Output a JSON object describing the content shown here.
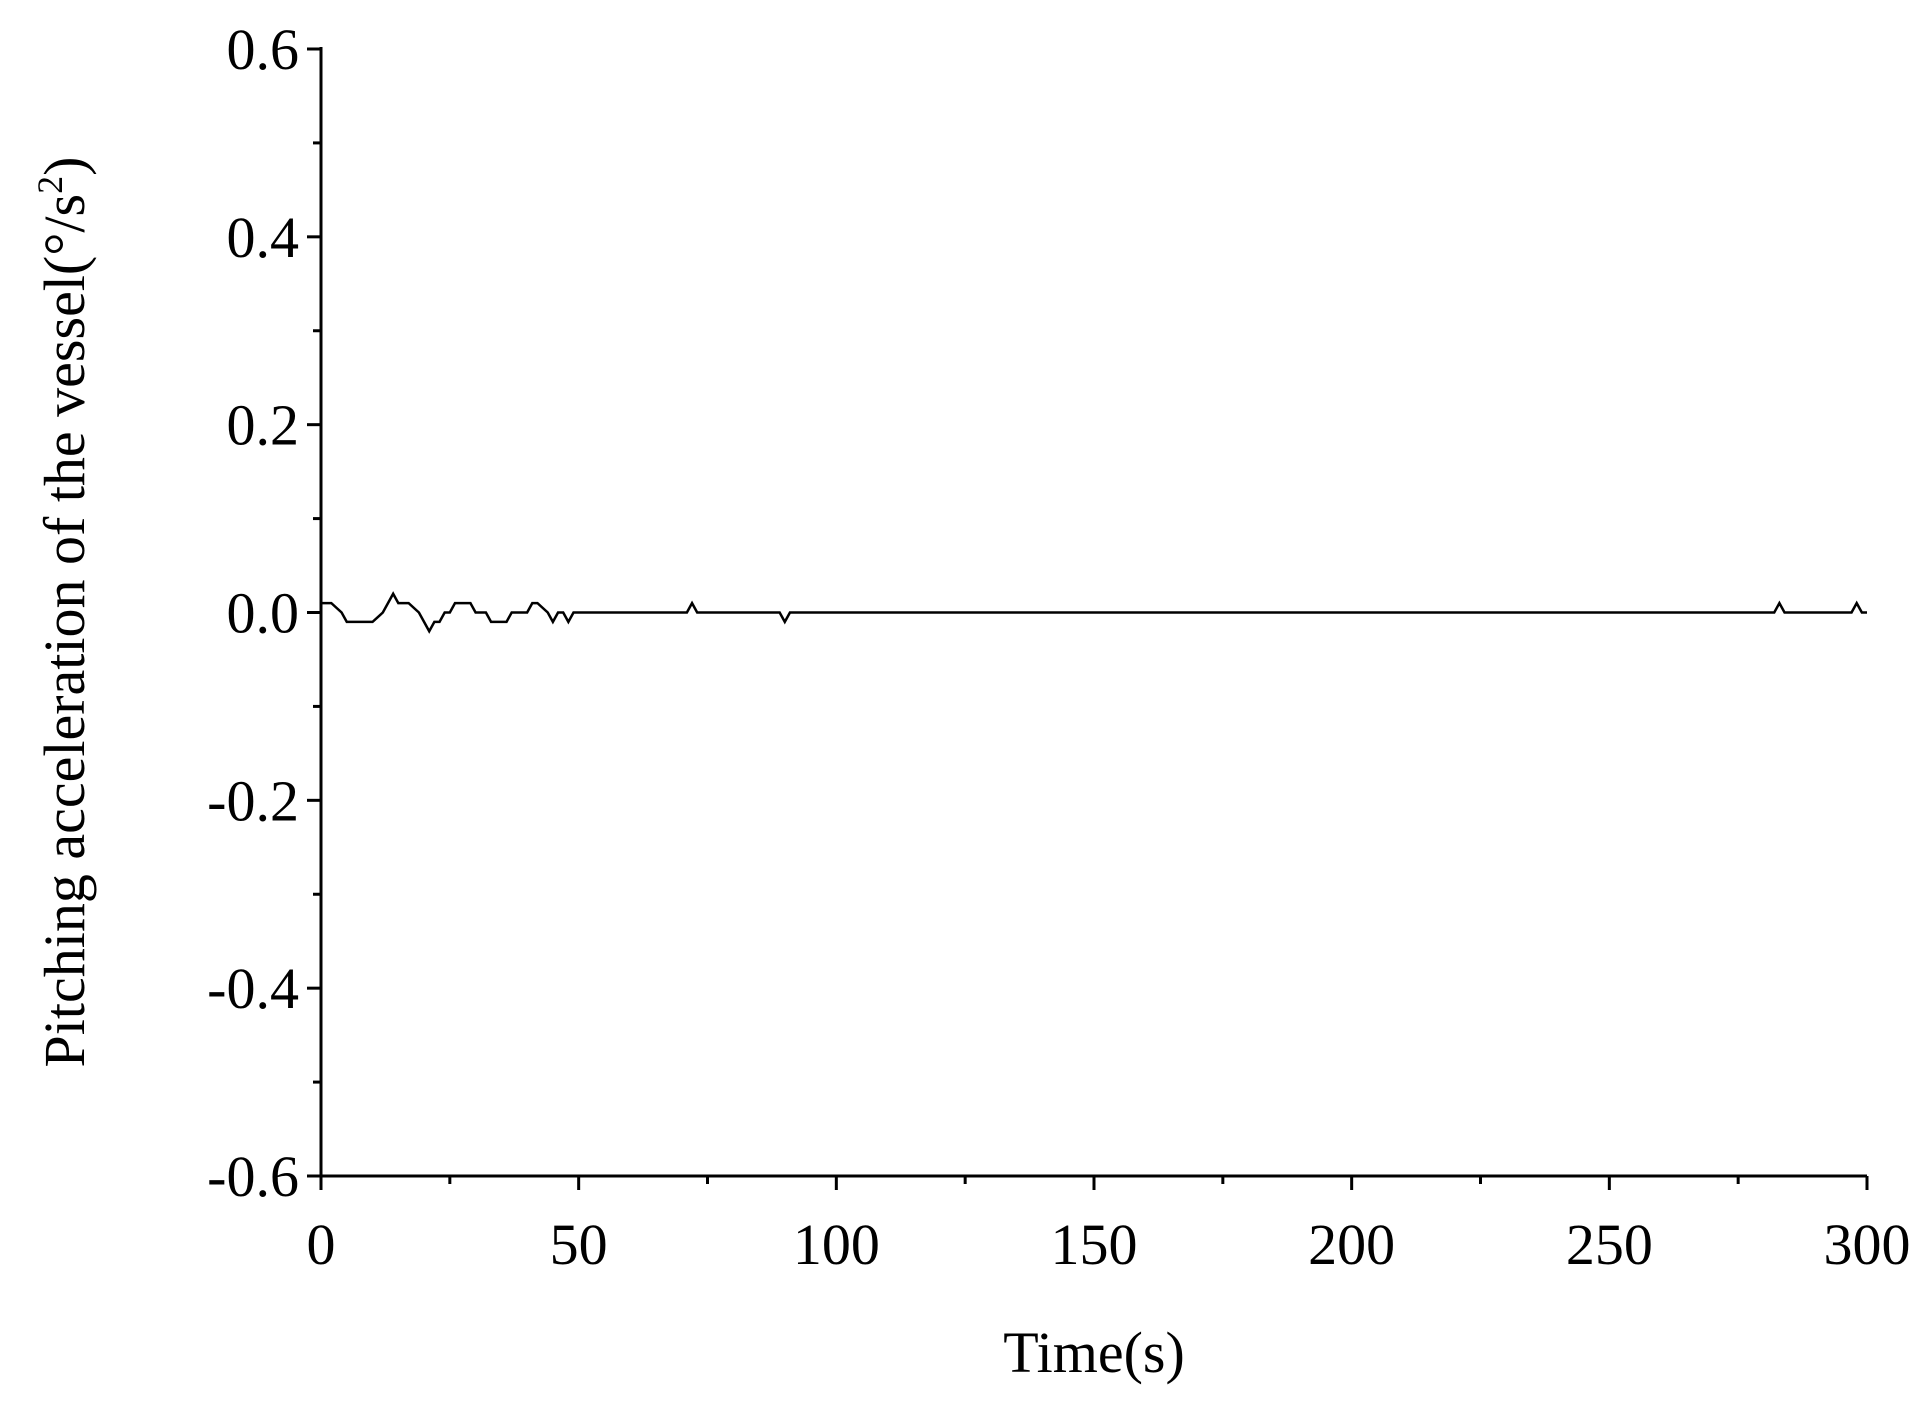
{
  "chart_data": {
    "type": "line",
    "x_label": "Time(s)",
    "y_label": {
      "text": "Pitching acceleration of the vessel(°/s",
      "sup": "2",
      "end": ")"
    },
    "x": [
      0,
      2,
      4,
      5,
      10,
      12,
      13,
      14,
      15,
      17,
      19,
      20,
      21,
      22,
      23,
      24,
      25,
      26,
      29,
      30,
      32,
      33,
      36,
      37,
      40,
      41,
      42,
      44,
      45,
      46,
      47,
      48,
      49,
      71,
      72,
      73,
      89,
      90,
      91,
      282,
      283,
      284,
      297,
      298,
      299,
      300
    ],
    "values": [
      0.01,
      0.01,
      0,
      -0.01,
      -0.01,
      0,
      0.01,
      0.02,
      0.01,
      0.01,
      0,
      -0.01,
      -0.02,
      -0.01,
      -0.01,
      0,
      0,
      0.01,
      0.01,
      0,
      0,
      -0.01,
      -0.01,
      0,
      0,
      0.01,
      0.01,
      0,
      -0.01,
      0,
      0,
      -0.01,
      0,
      0,
      0.01,
      0,
      0,
      -0.01,
      0,
      0,
      0.01,
      0,
      0,
      0.01,
      0,
      0
    ],
    "color": "#000000",
    "xlim": [
      0,
      300
    ],
    "xticks": [
      0,
      50,
      100,
      150,
      200,
      250,
      300
    ],
    "xminorticks": [
      25,
      75,
      125,
      175,
      225,
      275
    ],
    "ylim": [
      -0.6,
      0.6
    ],
    "yticks": [
      -0.6,
      -0.4,
      -0.2,
      {
        "value": 0,
        "label": "0.0"
      },
      0.2,
      0.4,
      0.6
    ],
    "yminorticks": [
      -0.5,
      -0.3,
      -0.1,
      0.1,
      0.3,
      0.5
    ]
  }
}
